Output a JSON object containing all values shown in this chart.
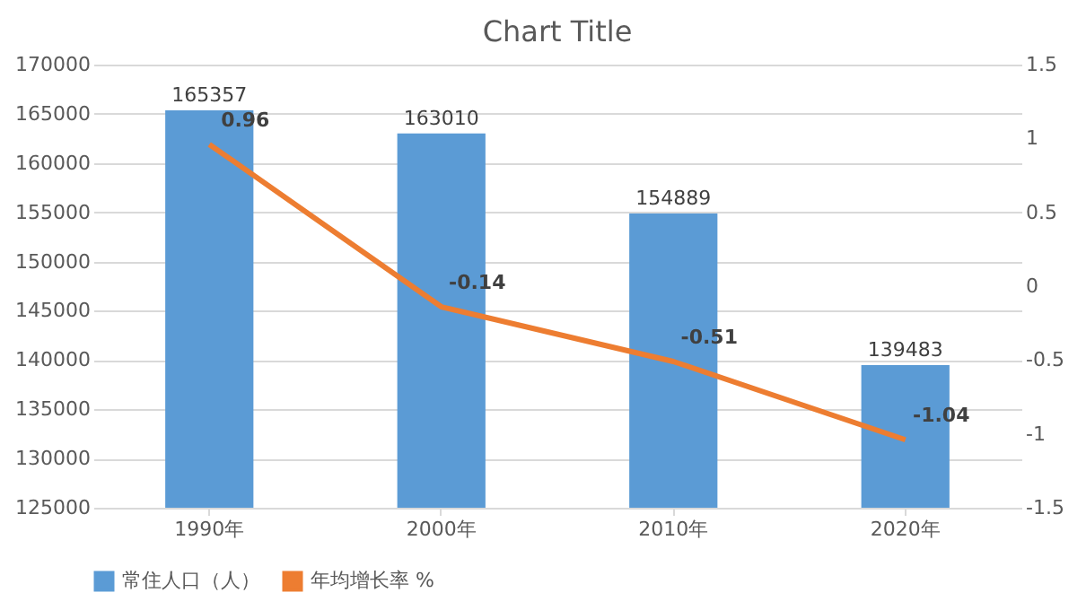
{
  "chart_data": {
    "type": "bar",
    "title": "Chart Title",
    "categories": [
      "1990年",
      "2000年",
      "2010年",
      "2020年"
    ],
    "series": [
      {
        "name": "常住人口（人）",
        "type": "bar",
        "color": "#5b9bd5",
        "values": [
          165357,
          163010,
          154889,
          139483
        ]
      },
      {
        "name": "年均增长率 %",
        "type": "line",
        "axis": "y2",
        "color": "#ed7d31",
        "values": [
          0.96,
          -0.14,
          -0.51,
          -1.04
        ]
      }
    ],
    "ylim": [
      125000,
      170000
    ],
    "yticks": [
      125000,
      130000,
      135000,
      140000,
      145000,
      150000,
      155000,
      160000,
      165000,
      170000
    ],
    "y2lim": [
      -1.5,
      1.5
    ],
    "y2ticks": [
      -1.5,
      -1,
      -0.5,
      0,
      0.5,
      1,
      1.5
    ],
    "data_labels": true,
    "grid": "y",
    "legend": "bottom",
    "marker": "none",
    "line_style": "solid"
  }
}
